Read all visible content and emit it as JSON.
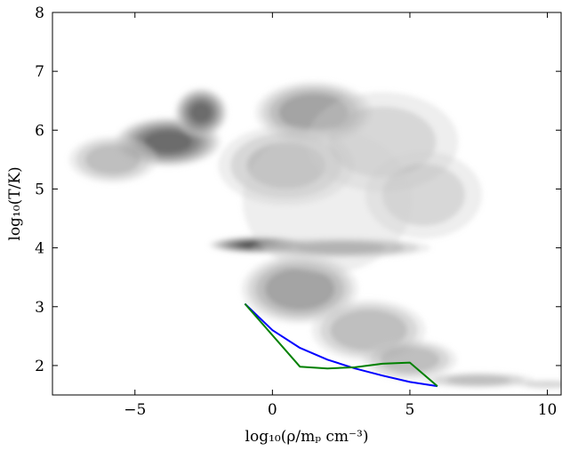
{
  "chart_data": {
    "type": "heatmap",
    "title": "",
    "xlabel": "log₁₀(ρ/mₚ cm⁻³)",
    "ylabel": "log₁₀(T/K)",
    "xlim": [
      -8,
      10.5
    ],
    "ylim": [
      1.5,
      8
    ],
    "xticks": [
      -5,
      0,
      5,
      10
    ],
    "yticks": [
      2,
      3,
      4,
      5,
      6,
      7,
      8
    ],
    "xtick_labels": [
      "−5",
      "0",
      "5",
      "10"
    ],
    "ytick_labels": [
      "2",
      "3",
      "4",
      "5",
      "6",
      "7",
      "8"
    ],
    "grid": false,
    "legend": "none",
    "colormap": "greys",
    "density_regions": [
      {
        "x": -3.8,
        "y": 5.8,
        "sx": 1.6,
        "sy": 0.35,
        "density": 0.95
      },
      {
        "x": -2.6,
        "y": 6.3,
        "sx": 0.8,
        "sy": 0.35,
        "density": 0.9
      },
      {
        "x": -5.8,
        "y": 5.5,
        "sx": 1.4,
        "sy": 0.35,
        "density": 0.5
      },
      {
        "x": 1.5,
        "y": 6.3,
        "sx": 1.8,
        "sy": 0.45,
        "density": 0.7
      },
      {
        "x": 0.5,
        "y": 5.4,
        "sx": 2.2,
        "sy": 0.6,
        "density": 0.45
      },
      {
        "x": 4.0,
        "y": 5.8,
        "sx": 2.6,
        "sy": 0.8,
        "density": 0.3
      },
      {
        "x": 5.5,
        "y": 4.9,
        "sx": 2.0,
        "sy": 0.7,
        "density": 0.3
      },
      {
        "x": -0.5,
        "y": 4.05,
        "sx": 1.5,
        "sy": 0.12,
        "density": 1.0
      },
      {
        "x": 2.5,
        "y": 4.0,
        "sx": 2.8,
        "sy": 0.15,
        "density": 0.6
      },
      {
        "x": 1.0,
        "y": 3.3,
        "sx": 1.8,
        "sy": 0.5,
        "density": 0.7
      },
      {
        "x": 3.5,
        "y": 2.6,
        "sx": 1.8,
        "sy": 0.45,
        "density": 0.55
      },
      {
        "x": 5.0,
        "y": 2.1,
        "sx": 1.5,
        "sy": 0.3,
        "density": 0.5
      },
      {
        "x": 7.5,
        "y": 1.75,
        "sx": 1.8,
        "sy": 0.12,
        "density": 0.45
      },
      {
        "x": 10.0,
        "y": 1.68,
        "sx": 1.0,
        "sy": 0.07,
        "density": 0.35
      },
      {
        "x": 2.0,
        "y": 4.8,
        "sx": 3.0,
        "sy": 1.2,
        "density": 0.25
      }
    ],
    "series": [
      {
        "type": "line",
        "color": "#0000ff",
        "x": [
          -1.0,
          0.0,
          1.0,
          2.0,
          3.0,
          4.0,
          5.0,
          6.0
        ],
        "y": [
          3.05,
          2.6,
          2.3,
          2.1,
          1.95,
          1.83,
          1.72,
          1.65
        ]
      },
      {
        "type": "line",
        "color": "#008000",
        "x": [
          -1.0,
          1.0,
          2.0,
          3.0,
          4.0,
          5.0,
          6.0
        ],
        "y": [
          3.05,
          1.98,
          1.95,
          1.97,
          2.03,
          2.05,
          1.65
        ]
      }
    ]
  }
}
